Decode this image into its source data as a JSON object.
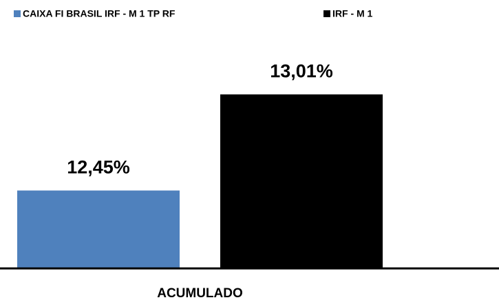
{
  "chart_data": {
    "type": "bar",
    "categories": [
      "ACUMULADO"
    ],
    "series": [
      {
        "name": "CAIXA FI BRASIL IRF - M 1 TP RF",
        "color": "#4f81bd",
        "values": [
          12.45
        ],
        "value_labels": [
          "12,45%"
        ]
      },
      {
        "name": "IRF - M 1",
        "color": "#000000",
        "values": [
          13.01
        ],
        "value_labels": [
          "13,01%"
        ]
      }
    ],
    "ylim": [
      12,
      13.2
    ],
    "legend": "top"
  }
}
